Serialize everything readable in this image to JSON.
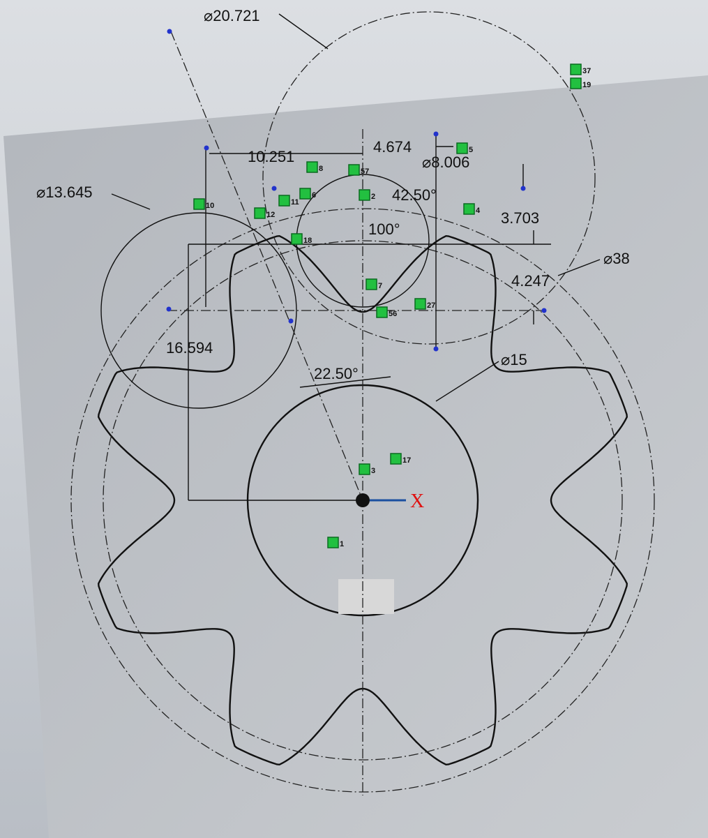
{
  "dimensions": [
    "⌀20.721",
    "10.251",
    "4.674",
    "⌀8.006",
    "⌀13.645",
    "42.50°",
    "100°",
    "3.703",
    "⌀38",
    "4.247",
    "16.594",
    "22.50°",
    "⌀15"
  ],
  "axis_label": "X",
  "relations": [
    "37",
    "19",
    "5",
    "8",
    "57",
    "2",
    "10",
    "11",
    "12",
    "18",
    "6",
    "4",
    "7",
    "3",
    "17",
    "56",
    "27",
    "1"
  ]
}
